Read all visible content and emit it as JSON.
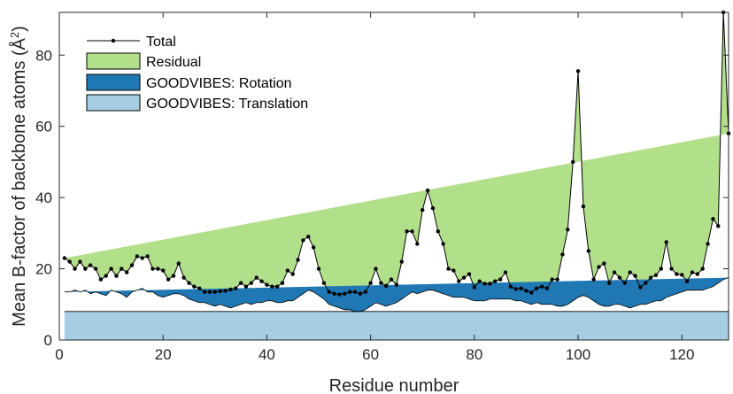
{
  "chart_data": {
    "type": "area",
    "xlabel": "Residue number",
    "ylabel": "Mean B-factor of backbone atoms (Å²)",
    "ylabel_parts": {
      "main": "Mean B-factor of backbone atoms (Å",
      "sup": "2",
      "close": ")"
    },
    "xlim": [
      0,
      129
    ],
    "ylim": [
      0,
      92
    ],
    "xticks": [
      0,
      20,
      40,
      60,
      80,
      100,
      120
    ],
    "yticks": [
      0,
      20,
      40,
      60,
      80
    ],
    "grid": false,
    "legend_position": "top-left",
    "x_start": 1,
    "x_end": 129,
    "series": [
      {
        "name": "Total",
        "style": "line-with-markers",
        "color": "#000000",
        "values": [
          23,
          22,
          20,
          22,
          20,
          21,
          20,
          17,
          18,
          20,
          18,
          20,
          19,
          21,
          23.5,
          23,
          23.5,
          20,
          20,
          19.5,
          17,
          18,
          21.5,
          17.5,
          16,
          15,
          14.5,
          13.5,
          13.5,
          13.5,
          13.7,
          13.8,
          14.2,
          14.5,
          16,
          15,
          16,
          17.5,
          16.5,
          15.5,
          15,
          15,
          16,
          19.5,
          18.5,
          22.5,
          28,
          29,
          26,
          20,
          16,
          13.5,
          13,
          12.8,
          13,
          13.5,
          13.5,
          13,
          13.5,
          16,
          20,
          16,
          15.2,
          17,
          15.5,
          22,
          30.5,
          30.5,
          27,
          36.5,
          42,
          37,
          30.5,
          27,
          20,
          19.5,
          16.5,
          17.5,
          18.5,
          14.8,
          16.5,
          15.8,
          15.8,
          16.5,
          17,
          19,
          15,
          14.3,
          14.5,
          13.8,
          13.3,
          14.5,
          15,
          14.5,
          17,
          17,
          24,
          31,
          50,
          75.5,
          37.5,
          25,
          17,
          20.5,
          21.5,
          16,
          19,
          17.5,
          16,
          19,
          18,
          14.8,
          16,
          17.5,
          18.2,
          20,
          27.5,
          20,
          18.5,
          18.3,
          16.5,
          19,
          18.5,
          20,
          27,
          34,
          32,
          92,
          58
        ]
      },
      {
        "name": "Residual",
        "style": "fill",
        "color": "#b2df8a"
      },
      {
        "name": "GOODVIBES: Rotation",
        "style": "fill",
        "color": "#1f78b4",
        "values": [
          5.5,
          5.5,
          6,
          5.5,
          6,
          5,
          5.5,
          5,
          4.5,
          6,
          5.5,
          5,
          4,
          5.5,
          6,
          6.5,
          5.5,
          5.5,
          4.5,
          4,
          4.5,
          5,
          5,
          4.5,
          3.5,
          3,
          2.5,
          2.5,
          2,
          1.5,
          2,
          1.5,
          1,
          1.5,
          2,
          2.5,
          2,
          2.5,
          2.5,
          3,
          3,
          2.5,
          2.5,
          3,
          3,
          4,
          5,
          6,
          5.5,
          4.5,
          3.5,
          2,
          1.5,
          1,
          0.5,
          0.5,
          0,
          0,
          0.5,
          1.5,
          2.5,
          2,
          1.5,
          2,
          2.5,
          3.5,
          4.5,
          5.5,
          5,
          5.5,
          6,
          6,
          5.5,
          5,
          4.5,
          4,
          4,
          4,
          3.5,
          3,
          3,
          3,
          3.5,
          3.5,
          3.5,
          3.5,
          3.5,
          3,
          3,
          2.5,
          2,
          2.5,
          2,
          2,
          2,
          1.5,
          1.5,
          2,
          3,
          4,
          4.5,
          4,
          3,
          2,
          1.5,
          1.5,
          2,
          2,
          1.5,
          1,
          1.5,
          2,
          2,
          2.5,
          3,
          3,
          4,
          4.5,
          5,
          5.5,
          6,
          6,
          6,
          6,
          6.5,
          7,
          8,
          9,
          9.5,
          9,
          9
        ]
      },
      {
        "name": "GOODVIBES: Translation",
        "style": "fill",
        "color": "#a6cee3",
        "constant": 8
      }
    ]
  }
}
